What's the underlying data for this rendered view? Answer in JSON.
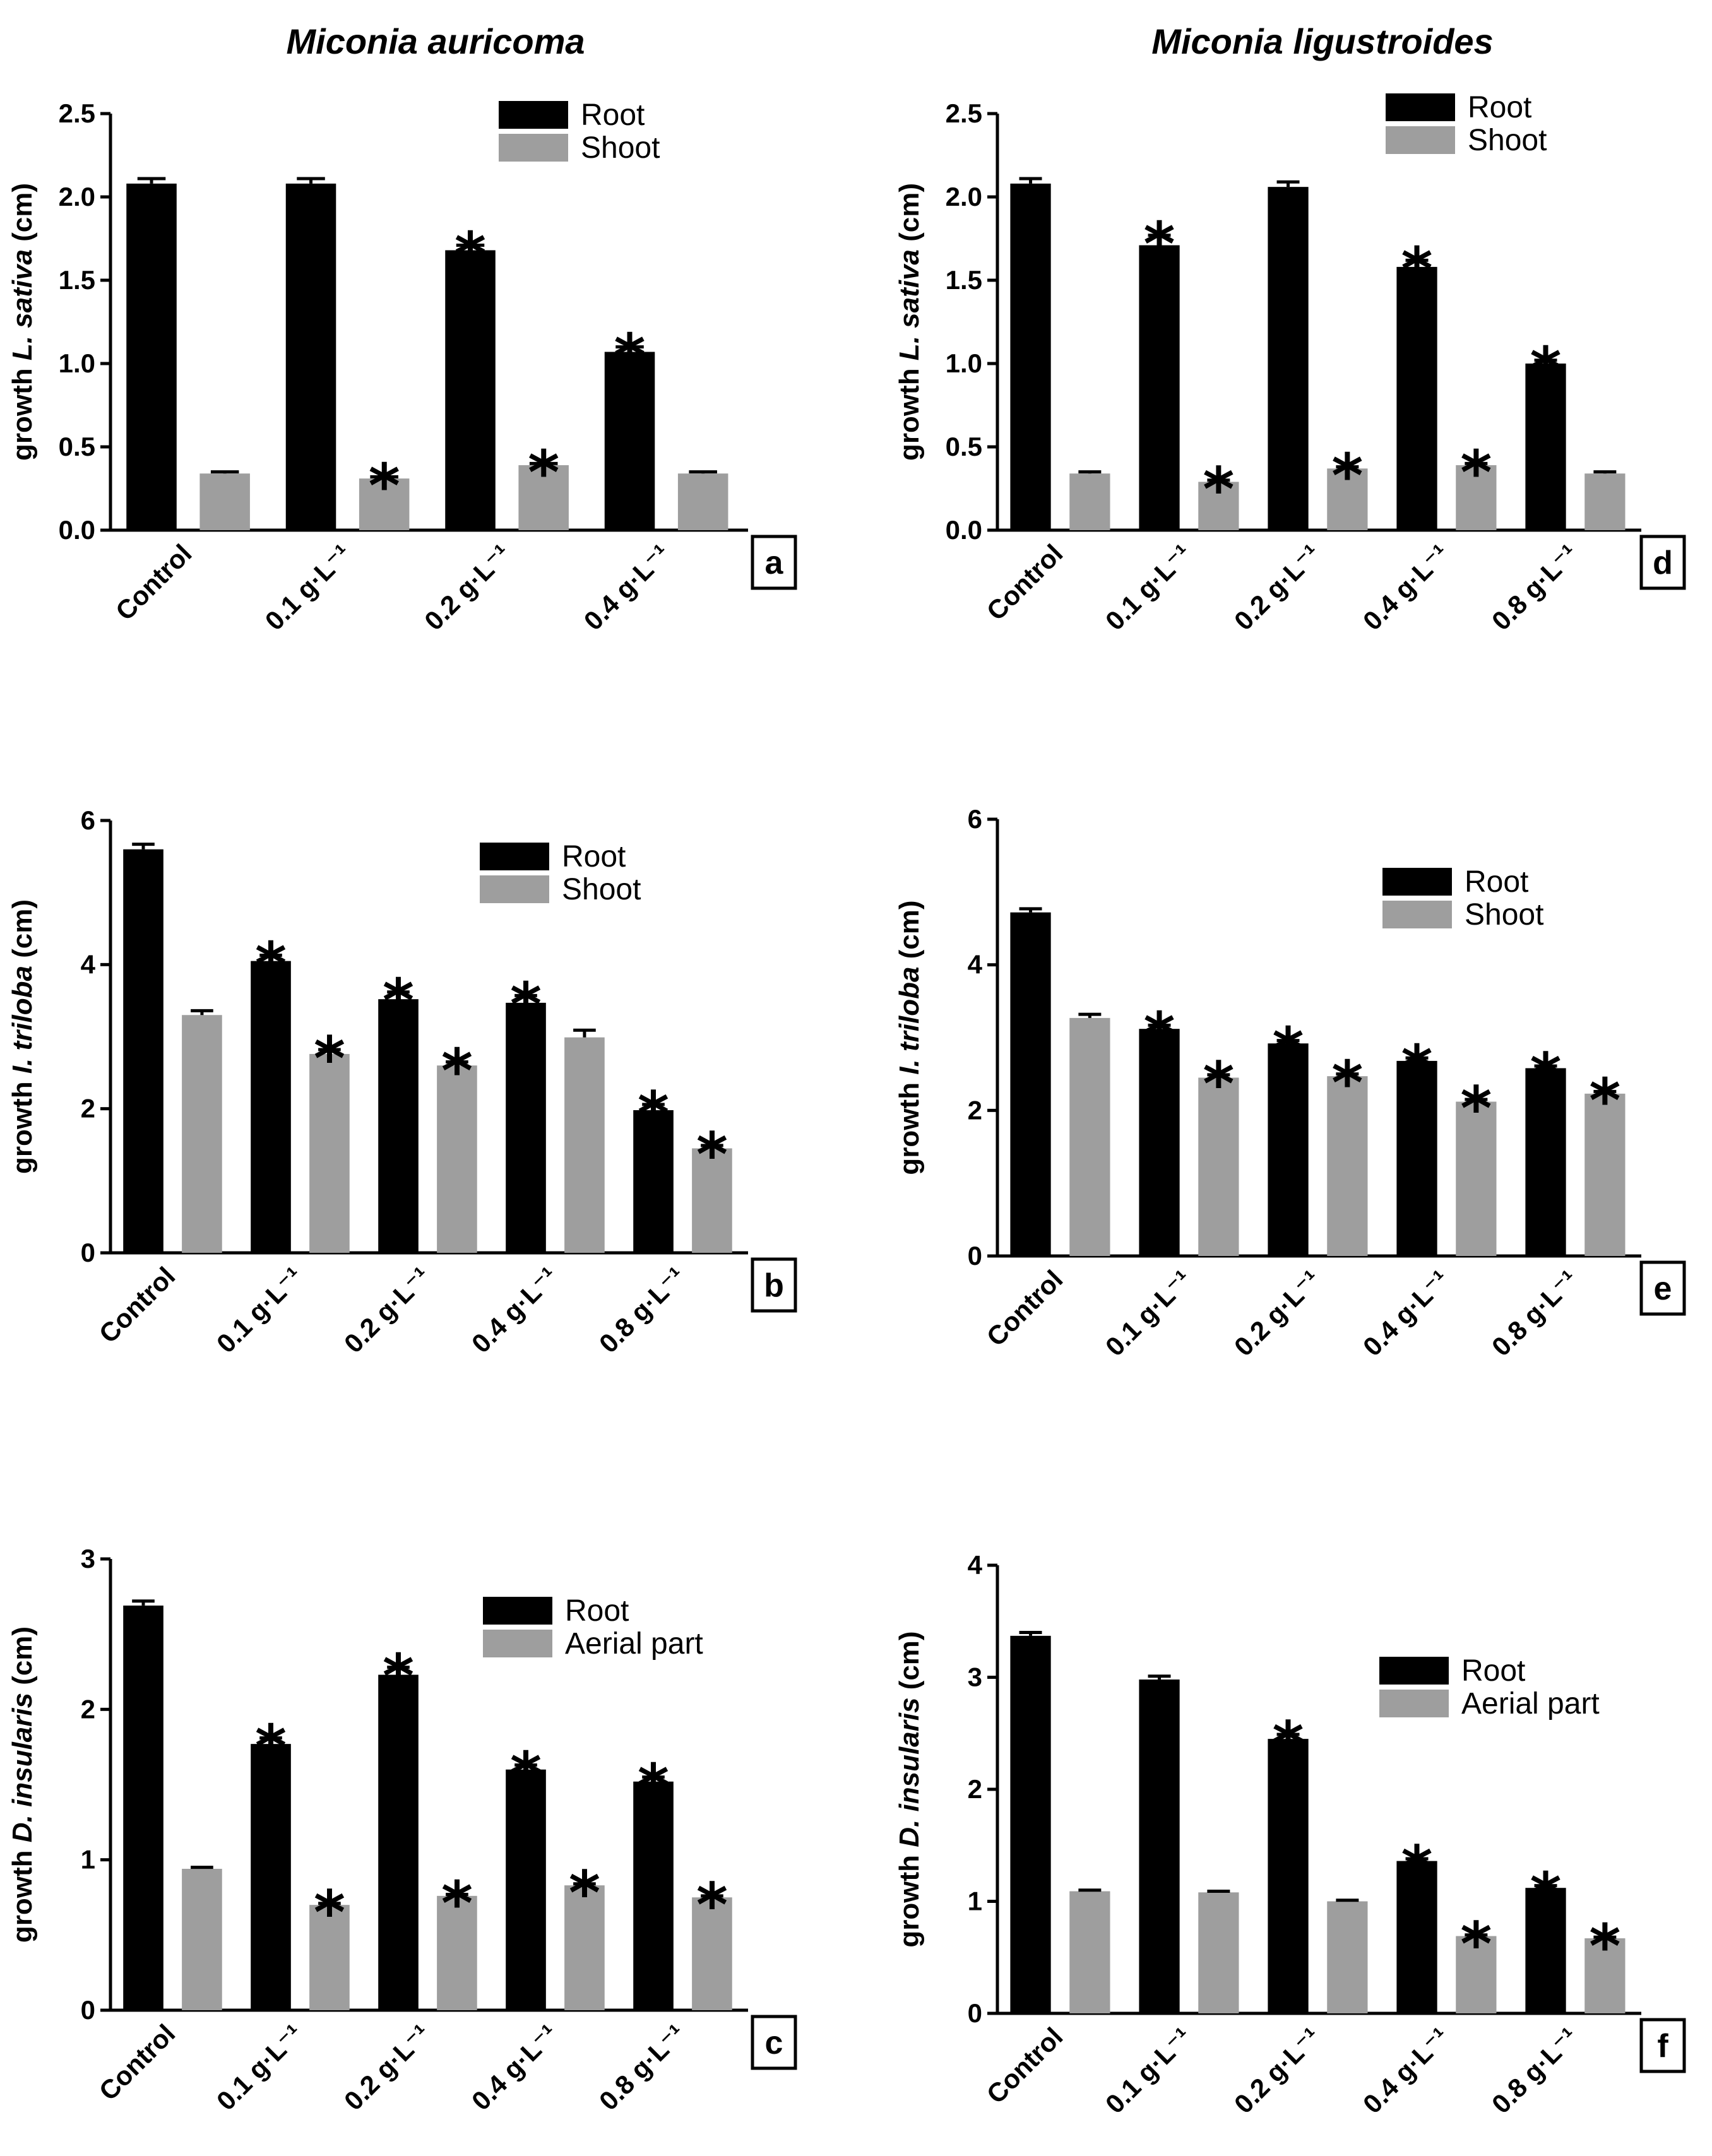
{
  "column_titles": [
    "Miconia auricoma",
    "Miconia ligustroides"
  ],
  "colors": {
    "root": "#000000",
    "shoot": "#9e9e9e"
  },
  "chart_data": [
    {
      "type": "bar",
      "panel": "a",
      "column": "Miconia auricoma",
      "ylabel_prefix": "growth ",
      "ylabel_species": "L. sativa",
      "ylabel_suffix": " (cm)",
      "ylim": [
        0,
        2.5
      ],
      "yticks": [
        "0.0",
        "0.5",
        "1.0",
        "1.5",
        "2.0",
        "2.5"
      ],
      "categories": [
        "Control",
        "0.1 g·L⁻¹",
        "0.2 g·L⁻¹",
        "0.4 g·L⁻¹"
      ],
      "legend_placement": "top-right",
      "series": [
        {
          "name": "Root",
          "values": [
            2.08,
            2.08,
            1.68,
            1.07
          ],
          "errors": [
            0.03,
            0.03,
            0.03,
            0.03
          ],
          "significant": [
            false,
            false,
            true,
            true
          ]
        },
        {
          "name": "Shoot",
          "values": [
            0.34,
            0.31,
            0.39,
            0.34
          ],
          "errors": [
            0.01,
            0.01,
            0.01,
            0.01
          ],
          "significant": [
            false,
            true,
            true,
            false
          ]
        }
      ]
    },
    {
      "type": "bar",
      "panel": "b",
      "column": "Miconia auricoma",
      "ylabel_prefix": "growth ",
      "ylabel_species": "I. triloba",
      "ylabel_suffix": " (cm)",
      "ylim": [
        0,
        6
      ],
      "yticks": [
        "0",
        "2",
        "4",
        "6"
      ],
      "categories": [
        "Control",
        "0.1 g·L⁻¹",
        "0.2 g·L⁻¹",
        "0.4 g·L⁻¹",
        "0.8 g·L⁻¹"
      ],
      "legend_placement": "top-right",
      "series": [
        {
          "name": "Root",
          "values": [
            5.6,
            4.05,
            3.52,
            3.47,
            1.98
          ],
          "errors": [
            0.07,
            0.08,
            0.1,
            0.1,
            0.08
          ],
          "significant": [
            false,
            true,
            true,
            true,
            true
          ]
        },
        {
          "name": "Shoot",
          "values": [
            3.3,
            2.76,
            2.6,
            2.99,
            1.45
          ],
          "errors": [
            0.06,
            0.06,
            0.05,
            0.1,
            0.04
          ],
          "significant": [
            false,
            true,
            true,
            false,
            true
          ]
        }
      ]
    },
    {
      "type": "bar",
      "panel": "c",
      "column": "Miconia auricoma",
      "ylabel_prefix": "growth ",
      "ylabel_species": "D. insularis",
      "ylabel_suffix": " (cm)",
      "ylim": [
        0,
        3
      ],
      "yticks": [
        "0",
        "1",
        "2",
        "3"
      ],
      "categories": [
        "Control",
        "0.1 g·L⁻¹",
        "0.2 g·L⁻¹",
        "0.4 g·L⁻¹",
        "0.8 g·L⁻¹"
      ],
      "legend_placement": "top-right",
      "series": [
        {
          "name": "Root",
          "values": [
            2.69,
            1.77,
            2.23,
            1.6,
            1.52
          ],
          "errors": [
            0.03,
            0.04,
            0.05,
            0.03,
            0.03
          ],
          "significant": [
            false,
            true,
            true,
            true,
            true
          ]
        },
        {
          "name": "Aerial part",
          "values": [
            0.94,
            0.7,
            0.76,
            0.83,
            0.75
          ],
          "errors": [
            0.01,
            0.01,
            0.01,
            0.01,
            0.01
          ],
          "significant": [
            false,
            true,
            true,
            true,
            true
          ]
        }
      ]
    },
    {
      "type": "bar",
      "panel": "d",
      "column": "Miconia ligustroides",
      "ylabel_prefix": "growth ",
      "ylabel_species": "L. sativa",
      "ylabel_suffix": " (cm)",
      "ylim": [
        0,
        2.5
      ],
      "yticks": [
        "0.0",
        "0.5",
        "1.0",
        "1.5",
        "2.0",
        "2.5"
      ],
      "categories": [
        "Control",
        "0.1 g·L⁻¹",
        "0.2 g·L⁻¹",
        "0.4 g·L⁻¹",
        "0.8 g·L⁻¹"
      ],
      "legend_placement": "top-right",
      "series": [
        {
          "name": "Root",
          "values": [
            2.08,
            1.71,
            2.06,
            1.58,
            1.0
          ],
          "errors": [
            0.03,
            0.06,
            0.03,
            0.04,
            0.02
          ],
          "significant": [
            false,
            true,
            false,
            true,
            true
          ]
        },
        {
          "name": "Shoot",
          "values": [
            0.34,
            0.29,
            0.37,
            0.39,
            0.34
          ],
          "errors": [
            0.01,
            0.01,
            0.01,
            0.01,
            0.01
          ],
          "significant": [
            false,
            true,
            true,
            true,
            false
          ]
        }
      ]
    },
    {
      "type": "bar",
      "panel": "e",
      "column": "Miconia ligustroides",
      "ylabel_prefix": "growth ",
      "ylabel_species": "I. triloba",
      "ylabel_suffix": " (cm)",
      "ylim": [
        0,
        6
      ],
      "yticks": [
        "0",
        "2",
        "4",
        "6"
      ],
      "categories": [
        "Control",
        "0.1 g·L⁻¹",
        "0.2 g·L⁻¹",
        "0.4 g·L⁻¹",
        "0.8 g·L⁻¹"
      ],
      "legend_placement": "top-right",
      "series": [
        {
          "name": "Root",
          "values": [
            4.72,
            3.12,
            2.92,
            2.68,
            2.58
          ],
          "errors": [
            0.05,
            0.05,
            0.04,
            0.04,
            0.03
          ],
          "significant": [
            false,
            true,
            true,
            true,
            true
          ]
        },
        {
          "name": "Shoot",
          "values": [
            3.27,
            2.45,
            2.47,
            2.12,
            2.23
          ],
          "errors": [
            0.05,
            0.04,
            0.03,
            0.03,
            0.03
          ],
          "significant": [
            false,
            true,
            true,
            true,
            true
          ]
        }
      ]
    },
    {
      "type": "bar",
      "panel": "f",
      "column": "Miconia ligustroides",
      "ylabel_prefix": "growth ",
      "ylabel_species": "D. insularis",
      "ylabel_suffix": " (cm)",
      "ylim": [
        0,
        4
      ],
      "yticks": [
        "0",
        "1",
        "2",
        "3",
        "4"
      ],
      "categories": [
        "Control",
        "0.1 g·L⁻¹",
        "0.2 g·L⁻¹",
        "0.4 g·L⁻¹",
        "0.8 g·L⁻¹"
      ],
      "legend_placement": "top-right",
      "series": [
        {
          "name": "Root",
          "values": [
            3.37,
            2.98,
            2.45,
            1.36,
            1.12
          ],
          "errors": [
            0.03,
            0.03,
            0.04,
            0.02,
            0.02
          ],
          "significant": [
            false,
            false,
            true,
            true,
            true
          ]
        },
        {
          "name": "Aerial part",
          "values": [
            1.09,
            1.08,
            1.0,
            0.69,
            0.67
          ],
          "errors": [
            0.01,
            0.01,
            0.01,
            0.01,
            0.01
          ],
          "significant": [
            false,
            false,
            false,
            true,
            true
          ]
        }
      ]
    }
  ]
}
